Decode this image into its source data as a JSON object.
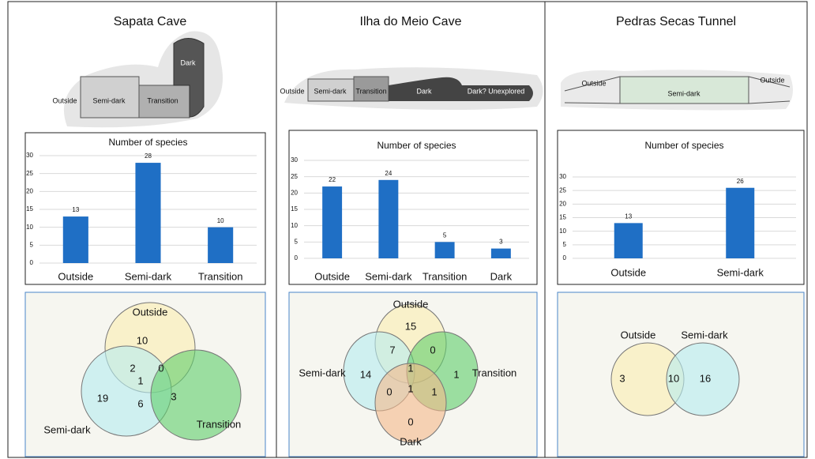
{
  "panels": [
    {
      "title": "Sapata Cave",
      "map_labels": [
        "Dark",
        "Outside",
        "Semi-dark",
        "Transition"
      ],
      "venn": {
        "sets": [
          "Outside",
          "Semi-dark",
          "Transition"
        ],
        "counts": [
          "10",
          "2",
          "0",
          "1",
          "19",
          "6",
          "3"
        ]
      }
    },
    {
      "title": "Ilha do Meio Cave",
      "map_labels": [
        "Outside",
        "Semi-dark",
        "Transition",
        "Dark",
        "Dark? Unexplored"
      ],
      "venn": {
        "sets": [
          "Outside",
          "Semi-dark",
          "Transition",
          "Dark"
        ],
        "counts": [
          "15",
          "7",
          "0",
          "14",
          "1",
          "1",
          "0",
          "1",
          "1",
          "0"
        ]
      }
    },
    {
      "title": "Pedras Secas Tunnel",
      "map_labels": [
        "Outside",
        "Semi-dark",
        "Outside"
      ],
      "venn": {
        "sets": [
          "Outside",
          "Semi-dark"
        ],
        "counts": [
          "3",
          "10",
          "16"
        ]
      }
    }
  ],
  "chart_data": [
    {
      "type": "bar",
      "title": "Number of species",
      "categories": [
        "Outside",
        "Semi-dark",
        "Transition"
      ],
      "values": [
        13,
        28,
        10
      ],
      "color": "#1f6fc5",
      "ylim": [
        0,
        30
      ],
      "yticks": [
        0,
        5,
        10,
        15,
        20,
        25,
        30
      ],
      "grid": true
    },
    {
      "type": "bar",
      "title": "Number of species",
      "categories": [
        "Outside",
        "Semi-dark",
        "Transition",
        "Dark"
      ],
      "values": [
        22,
        24,
        5,
        3
      ],
      "color": "#1f6fc5",
      "ylim": [
        0,
        30
      ],
      "yticks": [
        0,
        5,
        10,
        15,
        20,
        25,
        30
      ],
      "grid": true
    },
    {
      "type": "bar",
      "title": "Number of species",
      "categories": [
        "Outside",
        "Semi-dark"
      ],
      "values": [
        13,
        26
      ],
      "color": "#1f6fc5",
      "ylim": [
        0,
        30
      ],
      "yticks": [
        0,
        5,
        10,
        15,
        20,
        25,
        30
      ],
      "grid": true
    }
  ]
}
